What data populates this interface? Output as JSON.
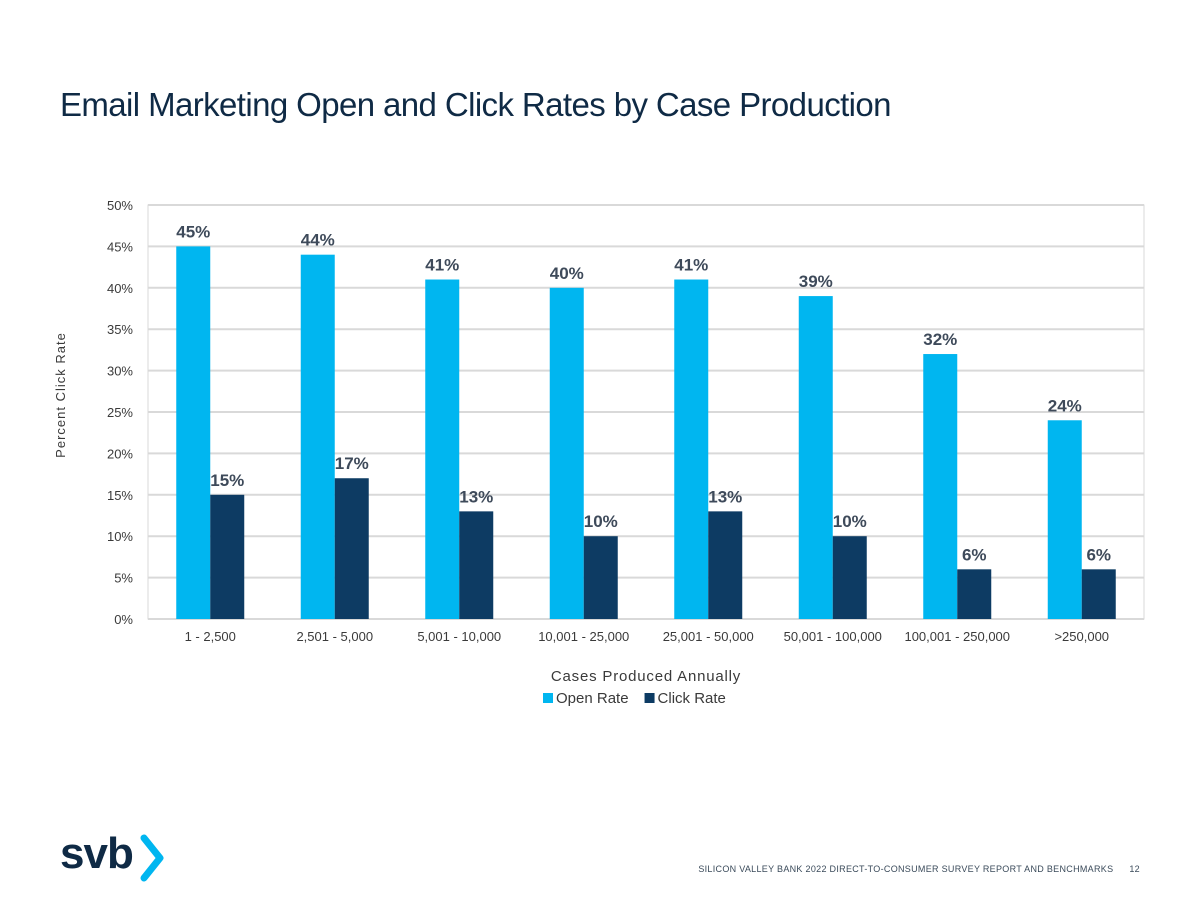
{
  "slide": {
    "title": "Email Marketing Open and Click Rates by Case Production",
    "footer_text": "SILICON VALLEY BANK 2022 DIRECT-TO-CONSUMER SURVEY REPORT AND BENCHMARKS",
    "page_number": "12",
    "logo_text": "svb",
    "logo_accent_color": "#00b6f0"
  },
  "chart_data": {
    "type": "bar",
    "title": "",
    "xlabel": "Cases Produced Annually",
    "ylabel": "Percent Click Rate",
    "ylim": [
      0,
      50
    ],
    "ytick_step": 5,
    "ytick_suffix": "%",
    "grid": true,
    "legend_position": "bottom",
    "categories": [
      "1 - 2,500",
      "2,501 - 5,000",
      "5,001 - 10,000",
      "10,001 - 25,000",
      "25,001 - 50,000",
      "50,001 - 100,000",
      "100,001 - 250,000",
      ">250,000"
    ],
    "series": [
      {
        "name": "Open Rate",
        "color": "#00b6f0",
        "values": [
          45,
          44,
          41,
          40,
          41,
          39,
          32,
          24
        ]
      },
      {
        "name": "Click Rate",
        "color": "#0d3b63",
        "values": [
          15,
          17,
          13,
          10,
          13,
          10,
          6,
          6
        ]
      }
    ],
    "label_suffix": "%"
  }
}
